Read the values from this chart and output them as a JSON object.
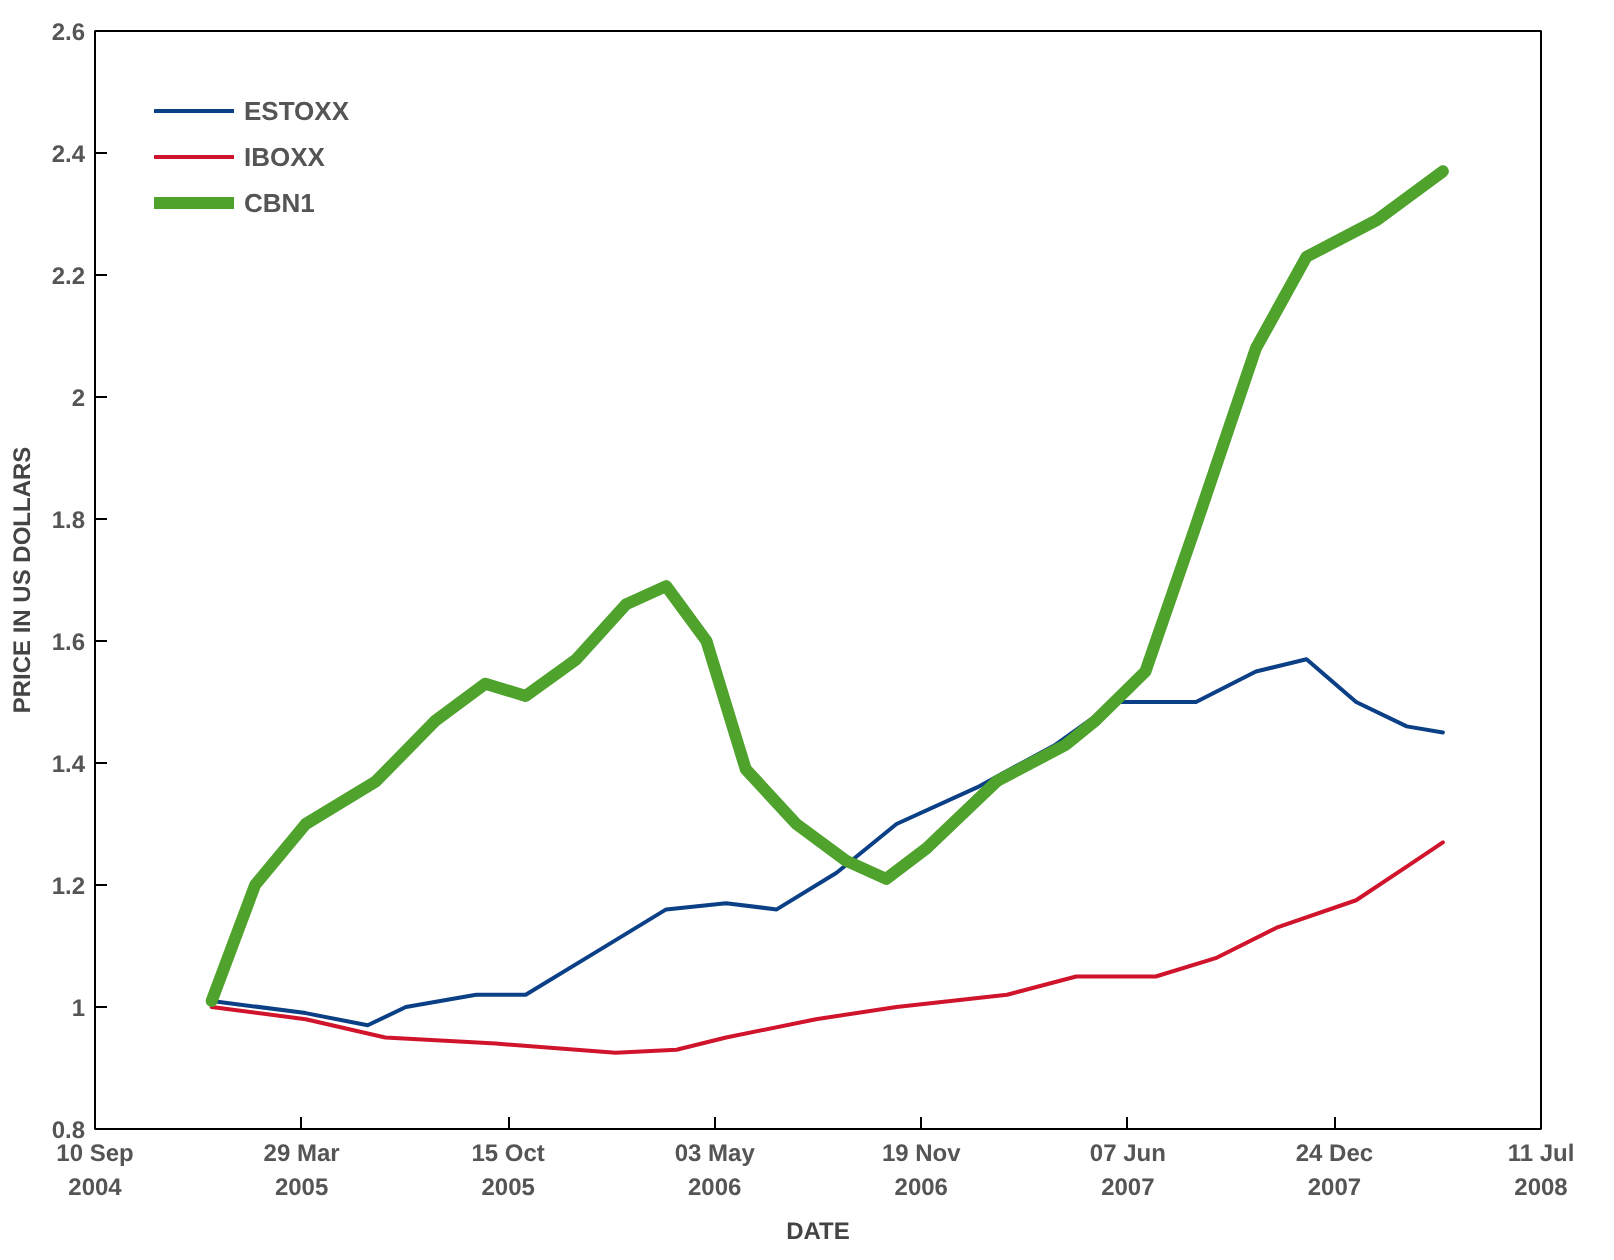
{
  "chart_data": {
    "type": "line",
    "xlabel": "DATE",
    "ylabel": "PRICE IN US DOLLARS",
    "xlim": [
      "2004-09-10",
      "2008-07-11"
    ],
    "ylim": [
      0.8,
      2.6
    ],
    "xticks": [
      {
        "value": "2004-09-10",
        "label": "10 Sep\n2004"
      },
      {
        "value": "2005-03-29",
        "label": "29 Mar\n2005"
      },
      {
        "value": "2005-10-15",
        "label": "15 Oct\n2005"
      },
      {
        "value": "2006-05-03",
        "label": "03 May\n2006"
      },
      {
        "value": "2006-11-19",
        "label": "19 Nov\n2006"
      },
      {
        "value": "2007-06-07",
        "label": "07 Jun\n2007"
      },
      {
        "value": "2007-12-24",
        "label": "24 Dec\n2007"
      },
      {
        "value": "2008-07-11",
        "label": "11 Jul\n2008"
      }
    ],
    "yticks": [
      0.8,
      1,
      1.2,
      1.4,
      1.6,
      1.8,
      2,
      2.2,
      2.4,
      2.6
    ],
    "grid": false,
    "legend": "top left",
    "series": [
      {
        "name": "ESTOXX",
        "color": "#0b3f86",
        "x": [
          "2005-01-01",
          "2005-04-02",
          "2005-06-01",
          "2005-07-08",
          "2005-09-14",
          "2005-11-01",
          "2006-01-08",
          "2006-03-17",
          "2006-05-14",
          "2006-07-02",
          "2006-08-29",
          "2006-10-26",
          "2007-01-12",
          "2007-03-29",
          "2007-05-26",
          "2007-08-12",
          "2007-10-09",
          "2007-11-27",
          "2008-01-14",
          "2008-03-03",
          "2008-04-07"
        ],
        "values": [
          1.01,
          0.99,
          0.97,
          1.0,
          1.02,
          1.02,
          1.09,
          1.16,
          1.17,
          1.16,
          1.22,
          1.3,
          1.36,
          1.43,
          1.5,
          1.5,
          1.55,
          1.57,
          1.5,
          1.46,
          1.45
        ]
      },
      {
        "name": "IBOXX",
        "color": "#d0142c",
        "x": [
          "2005-01-01",
          "2005-04-02",
          "2005-06-18",
          "2005-10-03",
          "2006-01-27",
          "2006-03-27",
          "2006-05-14",
          "2006-08-09",
          "2006-10-26",
          "2007-02-10",
          "2007-04-18",
          "2007-07-04",
          "2007-08-31",
          "2007-10-29",
          "2008-01-14",
          "2008-03-03",
          "2008-04-07"
        ],
        "values": [
          1.0,
          0.98,
          0.95,
          0.94,
          0.925,
          0.93,
          0.95,
          0.98,
          1.0,
          1.02,
          1.05,
          1.05,
          1.08,
          1.13,
          1.175,
          1.23,
          1.27
        ]
      },
      {
        "name": "CBN1",
        "color": "#4fa32c",
        "x": [
          "2005-01-01",
          "2005-02-12",
          "2005-04-02",
          "2005-06-09",
          "2005-08-06",
          "2005-09-23",
          "2005-11-01",
          "2005-12-20",
          "2006-02-06",
          "2006-03-17",
          "2006-04-25",
          "2006-06-02",
          "2006-07-21",
          "2006-09-07",
          "2006-10-16",
          "2006-11-24",
          "2007-01-31",
          "2007-04-08",
          "2007-05-07",
          "2007-06-24",
          "2007-08-12",
          "2007-10-09",
          "2007-11-27",
          "2008-02-03",
          "2008-04-07"
        ],
        "values": [
          1.01,
          1.2,
          1.3,
          1.37,
          1.47,
          1.53,
          1.51,
          1.57,
          1.66,
          1.69,
          1.6,
          1.39,
          1.3,
          1.24,
          1.21,
          1.26,
          1.37,
          1.43,
          1.47,
          1.55,
          1.79,
          2.08,
          2.23,
          2.29,
          2.37
        ]
      }
    ]
  }
}
